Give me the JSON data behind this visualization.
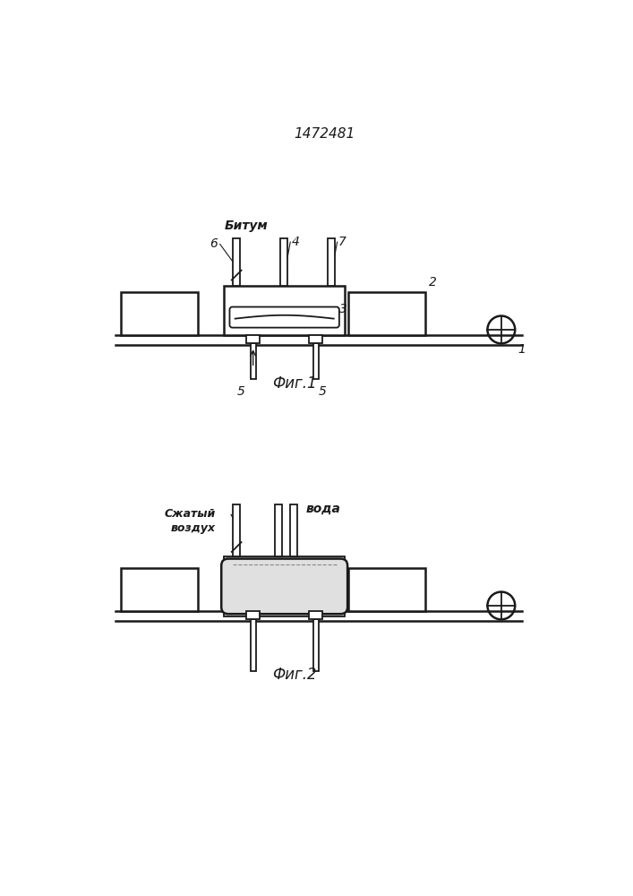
{
  "title": "1472481",
  "fig1_label": "Фиг.1",
  "fig2_label": "Фиг.2",
  "label_bitmum": "Битум",
  "label_compressed_air": "Сжатый\nвоздух",
  "label_water": "вода",
  "label_3": "3",
  "label_4": "4",
  "label_5a": "5",
  "label_5b": "5",
  "label_6": "6",
  "label_7": "7",
  "label_1": "1",
  "label_2": "2",
  "bg_color": "#ffffff",
  "line_color": "#1a1a1a",
  "line_width": 1.3
}
